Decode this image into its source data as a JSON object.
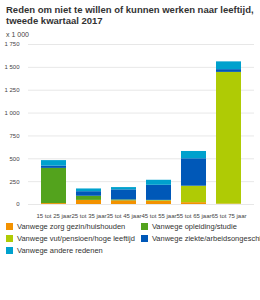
{
  "chart_data": {
    "type": "bar",
    "stacked": true,
    "grid": true,
    "legend": "bottom",
    "title": "Reden om niet te willen of kunnen werken naar leeftijd, tweede kwartaal 2017",
    "y_label": "x 1 000",
    "categories": [
      "15 tot 25 jaar",
      "25 tot 35 jaar",
      "35 tot 45 jaar",
      "45 tot 55 jaar",
      "55 tot 65 jaar",
      "65 tot 75 jaar"
    ],
    "series": [
      {
        "name": "Vanwege zorg gezin/huishouden",
        "color": "#f39200",
        "values": [
          10,
          45,
          40,
          35,
          20,
          5
        ]
      },
      {
        "name": "Vanwege opleiding/studie",
        "color": "#53a31d",
        "values": [
          385,
          45,
          10,
          5,
          0,
          0
        ]
      },
      {
        "name": "Vanwege vut/pensioen/hoge leeftijd",
        "color": "#afcb05",
        "values": [
          0,
          0,
          0,
          5,
          180,
          1440
        ]
      },
      {
        "name": "Vanwege ziekte/arbeidsongeschiktheid",
        "color": "#0058b8",
        "values": [
          25,
          50,
          110,
          165,
          300,
          30
        ]
      },
      {
        "name": "Vanwege andere redenen",
        "color": "#00a1cd",
        "values": [
          60,
          30,
          25,
          55,
          80,
          85
        ]
      }
    ],
    "ylim": [
      0,
      1750
    ],
    "yticks": [
      0,
      250,
      500,
      750,
      {
        "value": 1000,
        "label": "1 000"
      },
      {
        "value": 1250,
        "label": "1 250"
      },
      {
        "value": 1500,
        "label": "1 500"
      },
      {
        "value": 1750,
        "label": "1 750"
      }
    ]
  }
}
